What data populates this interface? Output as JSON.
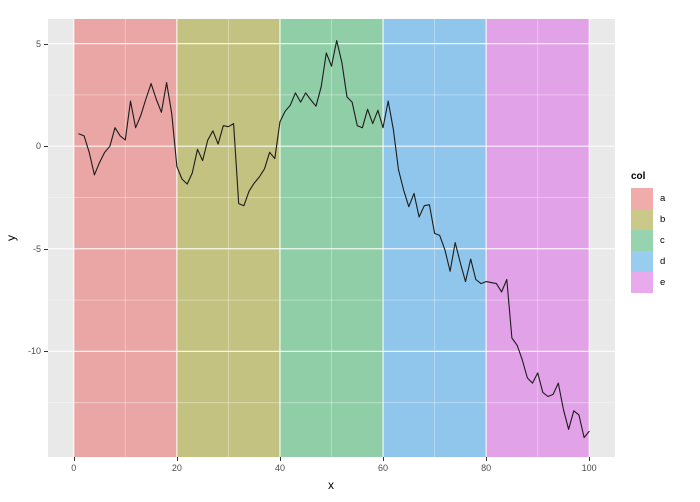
{
  "chart_data": {
    "type": "line",
    "title": "",
    "xlabel": "x",
    "ylabel": "y",
    "x_ticks": [
      0,
      20,
      40,
      60,
      80,
      100
    ],
    "x_minor_gridlines": [
      10,
      30,
      50,
      70,
      90
    ],
    "y_ticks": [
      5,
      0,
      -5,
      -10
    ],
    "y_minor_gridlines": [
      2.5,
      -2.5,
      -7.5,
      -12.5
    ],
    "xlim": [
      -5,
      105
    ],
    "ylim": [
      -15.15,
      6.2
    ],
    "grid": "white major and minor gridlines on gray panel",
    "panel_bg": "#E9E9E9",
    "grid_major_color": "rgba(255,255,255,0.85)",
    "grid_minor_color": "rgba(255,255,255,0.38)",
    "line_color": "#1C1C1C",
    "legend": {
      "title": "col",
      "position": "right",
      "entries": [
        {
          "label": "a",
          "band_color": "#E9A6A4",
          "swatch_color": "#EFACAB",
          "x0": 0,
          "x1": 20
        },
        {
          "label": "b",
          "band_color": "#C4C281",
          "swatch_color": "#CBC98A",
          "x0": 20,
          "x1": 40
        },
        {
          "label": "c",
          "band_color": "#90CEA8",
          "swatch_color": "#98D3AF",
          "x0": 40,
          "x1": 60
        },
        {
          "label": "d",
          "band_color": "#90C6EB",
          "swatch_color": "#99CDEF",
          "x0": 60,
          "x1": 80
        },
        {
          "label": "e",
          "band_color": "#E2A2E8",
          "swatch_color": "#E8A9ED",
          "x0": 80,
          "x1": 100
        }
      ]
    },
    "series": [
      {
        "name": "y",
        "x": [
          1,
          2,
          3,
          4,
          5,
          6,
          7,
          8,
          9,
          10,
          11,
          12,
          13,
          14,
          15,
          16,
          17,
          18,
          19,
          20,
          21,
          22,
          23,
          24,
          25,
          26,
          27,
          28,
          29,
          30,
          31,
          32,
          33,
          34,
          35,
          36,
          37,
          38,
          39,
          40,
          41,
          42,
          43,
          44,
          45,
          46,
          47,
          48,
          49,
          50,
          51,
          52,
          53,
          54,
          55,
          56,
          57,
          58,
          59,
          60,
          61,
          62,
          63,
          64,
          65,
          66,
          67,
          68,
          69,
          70,
          71,
          72,
          73,
          74,
          75,
          76,
          77,
          78,
          79,
          80,
          81,
          82,
          83,
          84,
          85,
          86,
          87,
          88,
          89,
          90,
          91,
          92,
          93,
          94,
          95,
          96,
          97,
          98,
          99,
          100
        ],
        "y": [
          0.6,
          0.5,
          -0.3,
          -1.4,
          -0.8,
          -0.3,
          0.0,
          0.9,
          0.5,
          0.3,
          2.2,
          0.9,
          1.5,
          2.3,
          3.05,
          2.3,
          1.65,
          3.1,
          1.6,
          -1.0,
          -1.6,
          -1.85,
          -1.3,
          -0.15,
          -0.7,
          0.3,
          0.75,
          0.1,
          1.0,
          0.95,
          1.1,
          -2.8,
          -2.9,
          -2.2,
          -1.8,
          -1.5,
          -1.1,
          -0.3,
          -0.6,
          1.2,
          1.7,
          2.0,
          2.6,
          2.15,
          2.6,
          2.25,
          1.95,
          2.9,
          4.55,
          3.9,
          5.15,
          4.1,
          2.4,
          2.15,
          1.0,
          0.9,
          1.8,
          1.1,
          1.75,
          0.9,
          2.2,
          0.8,
          -1.15,
          -2.15,
          -2.95,
          -2.3,
          -3.45,
          -2.9,
          -2.85,
          -4.25,
          -4.35,
          -5.05,
          -6.1,
          -4.7,
          -5.7,
          -6.6,
          -5.5,
          -6.5,
          -6.7,
          -6.6,
          -6.65,
          -6.7,
          -7.1,
          -6.5,
          -9.35,
          -9.7,
          -10.4,
          -11.3,
          -11.55,
          -11.05,
          -12.0,
          -12.2,
          -12.1,
          -11.55,
          -12.85,
          -13.8,
          -12.9,
          -13.1,
          -14.2,
          -13.9
        ]
      }
    ]
  }
}
